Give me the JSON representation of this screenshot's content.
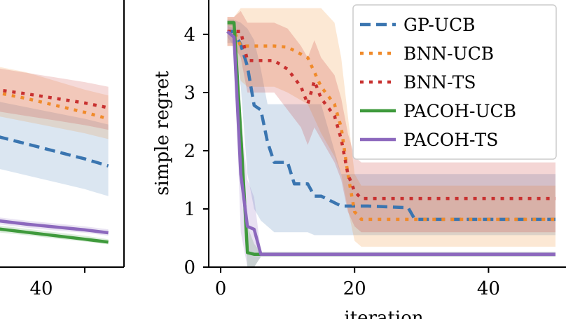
{
  "chart_data": [
    {
      "type": "line",
      "panel": "left (partially visible)",
      "x_ticks": [
        40
      ],
      "series": [
        {
          "name": "GP-UCB",
          "color": "#3a75b0",
          "dash": "dashed",
          "x": [
            0,
            10,
            20,
            30,
            40,
            50
          ],
          "y": [
            2.4,
            2.25,
            2.12,
            1.99,
            1.86,
            1.74
          ],
          "band_low": [
            1.85,
            1.7,
            1.58,
            1.46,
            1.34,
            1.22
          ],
          "band_high": [
            2.95,
            2.85,
            2.75,
            2.65,
            2.55,
            2.45
          ]
        },
        {
          "name": "BNN-UCB",
          "color": "#f08a2a",
          "dash": "dotted",
          "x": [
            0,
            10,
            20,
            30,
            40,
            50
          ],
          "y": [
            3.1,
            3.0,
            2.9,
            2.78,
            2.66,
            2.55
          ],
          "band_low": [
            2.7,
            2.6,
            2.5,
            2.4,
            2.3,
            2.2
          ],
          "band_high": [
            3.55,
            3.45,
            3.35,
            3.2,
            3.05,
            2.95
          ]
        },
        {
          "name": "BNN-TS",
          "color": "#c8302f",
          "dash": "dotted",
          "x": [
            0,
            10,
            20,
            30,
            40,
            50
          ],
          "y": [
            3.12,
            3.05,
            2.98,
            2.9,
            2.82,
            2.74
          ],
          "band_low": [
            2.75,
            2.68,
            2.6,
            2.52,
            2.44,
            2.36
          ],
          "band_high": [
            3.5,
            3.42,
            3.34,
            3.26,
            3.18,
            3.1
          ]
        },
        {
          "name": "PACOH-UCB",
          "color": "#3f9a3c",
          "dash": "solid",
          "x": [
            0,
            10,
            20,
            30,
            40,
            50
          ],
          "y": [
            0.72,
            0.66,
            0.6,
            0.54,
            0.48,
            0.43
          ],
          "band_low": [
            0.66,
            0.6,
            0.55,
            0.49,
            0.44,
            0.39
          ],
          "band_high": [
            0.78,
            0.72,
            0.66,
            0.6,
            0.54,
            0.48
          ]
        },
        {
          "name": "PACOH-TS",
          "color": "#8c68bd",
          "dash": "solid",
          "x": [
            0,
            10,
            20,
            30,
            40,
            50
          ],
          "y": [
            0.85,
            0.8,
            0.74,
            0.69,
            0.64,
            0.59
          ],
          "band_low": [
            0.78,
            0.74,
            0.68,
            0.63,
            0.59,
            0.54
          ],
          "band_high": [
            0.92,
            0.86,
            0.8,
            0.75,
            0.7,
            0.65
          ]
        }
      ]
    },
    {
      "type": "line",
      "panel": "right",
      "xlabel": "iteration",
      "ylabel": "simple regret",
      "xlim": [
        -1,
        51
      ],
      "ylim": [
        0,
        4.4
      ],
      "x_ticks": [
        0,
        20,
        40
      ],
      "y_ticks": [
        0,
        1,
        2,
        3,
        4
      ],
      "legend": "top-right",
      "series": [
        {
          "name": "GP-UCB",
          "color": "#3a75b0",
          "dash": "dashed",
          "x": [
            1,
            2,
            3,
            4,
            5,
            6,
            7,
            8,
            10,
            11,
            13,
            14,
            15,
            18,
            19,
            21,
            22,
            28,
            29,
            50
          ],
          "y": [
            4.05,
            4.05,
            3.82,
            3.45,
            2.78,
            2.7,
            2.15,
            1.8,
            1.8,
            1.43,
            1.43,
            1.22,
            1.22,
            1.05,
            1.05,
            1.05,
            1.05,
            1.02,
            0.82,
            0.82
          ],
          "band_low": [
            3.85,
            3.85,
            3.1,
            1.6,
            1.0,
            0.8,
            0.7,
            0.6,
            0.6,
            0.6,
            0.6,
            0.55,
            0.55,
            0.55,
            0.55,
            0.55,
            0.55,
            0.55,
            0.55,
            0.55
          ],
          "band_high": [
            4.25,
            4.25,
            4.2,
            4.1,
            3.9,
            3.4,
            2.8,
            2.8,
            2.8,
            2.8,
            2.8,
            2.8,
            2.8,
            1.6,
            1.6,
            1.6,
            1.6,
            1.6,
            1.6,
            1.6
          ]
        },
        {
          "name": "BNN-UCB",
          "color": "#f08a2a",
          "dash": "dotted",
          "x": [
            1,
            2,
            3,
            4,
            8,
            10,
            13,
            15,
            17,
            18,
            19,
            20,
            21,
            22,
            50
          ],
          "y": [
            4.05,
            4.05,
            3.8,
            3.8,
            3.8,
            3.78,
            3.6,
            3.1,
            2.8,
            2.4,
            1.6,
            0.95,
            0.82,
            0.82,
            0.82
          ],
          "band_low": [
            3.8,
            3.8,
            3.2,
            3.1,
            3.1,
            3.0,
            2.8,
            2.3,
            1.9,
            1.6,
            1.0,
            0.45,
            0.35,
            0.35,
            0.35
          ],
          "band_high": [
            4.3,
            4.3,
            4.45,
            4.45,
            4.45,
            4.45,
            4.45,
            4.45,
            4.2,
            3.6,
            2.6,
            1.6,
            1.4,
            1.4,
            1.4
          ]
        },
        {
          "name": "BNN-TS",
          "color": "#c8302f",
          "dash": "dotted",
          "x": [
            1,
            2,
            3,
            4,
            6,
            8,
            10,
            12,
            13,
            14,
            15,
            17,
            18,
            19,
            20,
            21,
            50
          ],
          "y": [
            4.05,
            4.05,
            4.05,
            3.55,
            3.55,
            3.55,
            3.4,
            3.1,
            2.8,
            3.2,
            2.9,
            2.6,
            2.2,
            1.6,
            1.3,
            1.18,
            1.18
          ],
          "band_low": [
            3.8,
            3.8,
            3.6,
            3.0,
            3.0,
            3.0,
            2.7,
            2.4,
            2.1,
            2.4,
            2.2,
            1.8,
            1.5,
            0.95,
            0.7,
            0.6,
            0.6
          ],
          "band_high": [
            4.3,
            4.3,
            4.4,
            4.2,
            4.2,
            4.2,
            4.1,
            3.8,
            3.6,
            3.9,
            3.6,
            3.3,
            2.9,
            2.3,
            1.9,
            1.8,
            1.8
          ]
        },
        {
          "name": "PACOH-UCB",
          "color": "#3f9a3c",
          "dash": "solid",
          "x": [
            1,
            2,
            3,
            4,
            5,
            6,
            50
          ],
          "y": [
            4.2,
            4.2,
            2.3,
            0.25,
            0.22,
            0.22,
            0.22
          ],
          "band_low": [
            4.15,
            4.15,
            1.9,
            0.0,
            0.0,
            0.18,
            0.18
          ],
          "band_high": [
            4.25,
            4.25,
            2.8,
            0.7,
            0.4,
            0.26,
            0.26
          ]
        },
        {
          "name": "PACOH-TS",
          "color": "#8c68bd",
          "dash": "solid",
          "x": [
            1,
            2,
            3,
            4,
            5,
            6,
            50
          ],
          "y": [
            4.05,
            3.95,
            1.6,
            0.7,
            0.65,
            0.22,
            0.22
          ],
          "band_low": [
            3.95,
            3.8,
            0.6,
            0.0,
            0.0,
            0.18,
            0.18
          ],
          "band_high": [
            4.15,
            4.1,
            2.6,
            1.5,
            1.2,
            0.26,
            0.26
          ]
        }
      ]
    }
  ]
}
